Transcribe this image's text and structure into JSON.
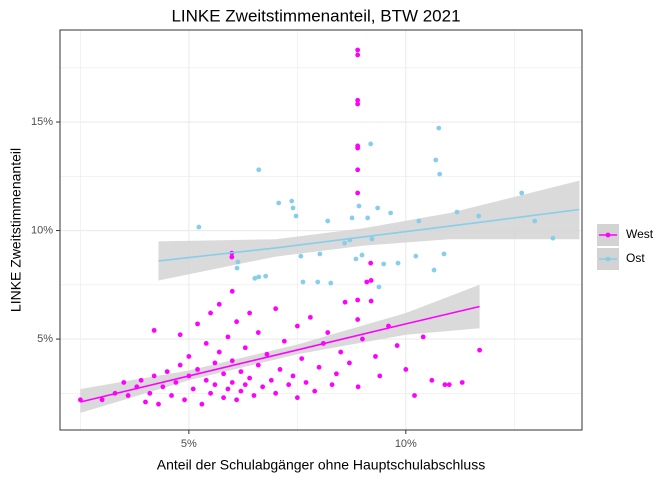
{
  "chart_data": {
    "type": "scatter",
    "title": "LINKE Zweitstimmenanteil, BTW 2021",
    "x_label": "Anteil der Schulabgänger ohne Hauptschulabschluss",
    "y_label": "LINKE Zweitstimmenanteil",
    "xlim": [
      2.03,
      14.06
    ],
    "ylim": [
      0.81,
      19.24
    ],
    "xticks": [
      {
        "value": 5,
        "label": "5%"
      },
      {
        "value": 10,
        "label": "10%"
      }
    ],
    "yticks": [
      {
        "value": 5,
        "label": "5%"
      },
      {
        "value": 10,
        "label": "10%"
      },
      {
        "value": 15,
        "label": "15%"
      }
    ],
    "minor_xticks": [
      2.5,
      7.5,
      12.5
    ],
    "minor_yticks": [
      2.5,
      7.5,
      12.5,
      17.5
    ],
    "grid": true,
    "legend": "right",
    "band_color": "#d3d3d3",
    "series": [
      {
        "name": "West",
        "color": "#ff00ff",
        "x": [
          2.5,
          3.0,
          3.3,
          3.5,
          3.6,
          3.8,
          3.9,
          4.0,
          4.1,
          4.2,
          4.2,
          4.3,
          4.4,
          4.5,
          4.6,
          4.7,
          4.8,
          4.8,
          4.9,
          5.0,
          5.0,
          5.1,
          5.2,
          5.2,
          5.3,
          5.4,
          5.4,
          5.5,
          5.5,
          5.6,
          5.6,
          5.7,
          5.7,
          5.8,
          5.8,
          5.9,
          5.9,
          6.0,
          6.0,
          6.0,
          6.1,
          6.1,
          6.2,
          6.2,
          6.3,
          6.3,
          6.4,
          6.4,
          6.5,
          6.6,
          6.6,
          6.7,
          6.8,
          6.9,
          7.0,
          7.0,
          7.1,
          7.2,
          7.3,
          7.4,
          7.5,
          7.5,
          7.6,
          7.7,
          7.8,
          7.9,
          8.0,
          8.1,
          8.2,
          8.3,
          8.4,
          8.5,
          8.6,
          8.7,
          8.89,
          8.89,
          8.89,
          8.89,
          8.89,
          8.89,
          8.89,
          8.89,
          8.89,
          8.89,
          8.9,
          9.0,
          9.1,
          9.19,
          9.2,
          9.3,
          9.4,
          9.6,
          9.8,
          10.0,
          10.2,
          10.4,
          10.6,
          10.9,
          11.0,
          11.3,
          11.7,
          5.99,
          5.99,
          9.2
        ],
        "values": [
          2.2,
          2.2,
          2.5,
          3.0,
          2.4,
          2.8,
          3.1,
          2.1,
          2.5,
          3.3,
          5.4,
          2.0,
          2.8,
          3.5,
          2.4,
          3.0,
          3.8,
          5.2,
          2.2,
          3.3,
          4.2,
          2.7,
          3.6,
          5.7,
          2.0,
          3.1,
          4.8,
          2.5,
          6.2,
          3.9,
          2.9,
          4.4,
          6.6,
          2.3,
          3.4,
          5.1,
          2.7,
          7.2,
          3.0,
          4.0,
          2.2,
          5.8,
          2.6,
          3.5,
          4.6,
          2.9,
          6.2,
          3.2,
          2.4,
          3.8,
          5.3,
          2.8,
          4.3,
          3.1,
          6.4,
          2.5,
          3.6,
          4.9,
          2.9,
          3.3,
          5.6,
          2.3,
          4.1,
          3.0,
          6.0,
          2.6,
          3.7,
          4.8,
          5.3,
          2.9,
          3.4,
          4.4,
          6.7,
          3.9,
          18.32,
          18.09,
          16.0,
          15.83,
          13.9,
          13.8,
          12.8,
          11.73,
          6.8,
          5.9,
          2.8,
          5.0,
          7.63,
          8.5,
          6.75,
          4.2,
          3.3,
          5.6,
          4.7,
          3.6,
          2.4,
          5.1,
          3.1,
          2.9,
          2.9,
          3.0,
          4.49,
          8.96,
          8.78,
          7.7
        ],
        "fit": {
          "x": [
            2.5,
            5,
            7.5,
            10,
            11.7
          ],
          "values": [
            2.1,
            3.3,
            4.5,
            5.7,
            6.5
          ],
          "lower": [
            1.6,
            3.1,
            4.3,
            5.2,
            5.5
          ],
          "upper": [
            2.7,
            3.55,
            4.75,
            6.2,
            7.5
          ]
        }
      },
      {
        "name": "Ost",
        "color": "#87ceeb",
        "x": [
          5.23,
          6.61,
          6.13,
          6.11,
          6.52,
          6.61,
          6.77,
          7.07,
          7.37,
          7.4,
          7.47,
          7.58,
          7.63,
          7.97,
          8.02,
          8.2,
          8.27,
          8.59,
          8.71,
          8.76,
          8.85,
          8.92,
          8.99,
          9.12,
          9.19,
          9.22,
          9.35,
          9.38,
          9.49,
          9.65,
          9.82,
          10.3,
          10.23,
          10.65,
          10.69,
          10.76,
          10.78,
          10.88,
          11.18,
          11.68,
          12.67,
          12.97,
          13.39
        ],
        "values": [
          10.16,
          12.8,
          8.55,
          8.27,
          7.8,
          7.86,
          7.9,
          11.27,
          11.36,
          11.04,
          10.67,
          8.82,
          7.63,
          7.63,
          8.92,
          10.44,
          7.58,
          9.42,
          9.56,
          10.58,
          8.69,
          11.13,
          8.87,
          10.58,
          13.99,
          9.61,
          11.04,
          7.4,
          8.46,
          10.81,
          8.5,
          10.44,
          8.82,
          8.18,
          13.25,
          14.72,
          12.6,
          8.92,
          10.85,
          10.67,
          11.73,
          10.44,
          9.65
        ],
        "fit": {
          "x": [
            4.3,
            7,
            9,
            11,
            14
          ],
          "values": [
            8.6,
            9.2,
            9.7,
            10.2,
            10.97
          ],
          "lower": [
            7.7,
            8.8,
            9.3,
            9.6,
            9.6
          ],
          "upper": [
            9.5,
            9.6,
            10.1,
            10.8,
            12.3
          ]
        }
      }
    ]
  }
}
